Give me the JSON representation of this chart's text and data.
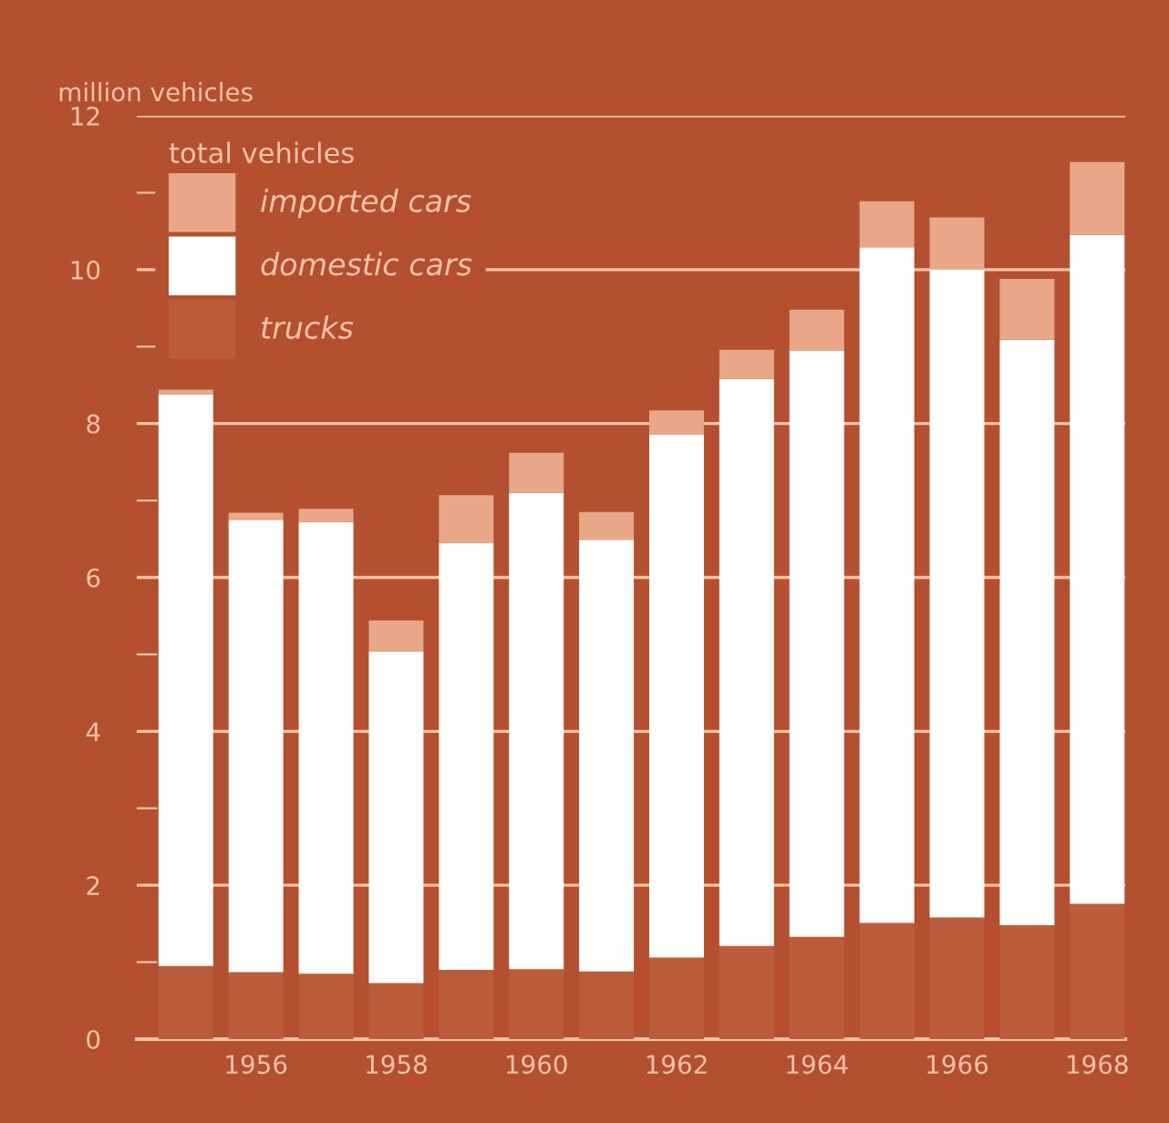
{
  "chart_data": {
    "type": "bar",
    "stacked": true,
    "ylabel": "million vehicles",
    "legend_title": "total vehicles",
    "categories": [
      null,
      "1956",
      null,
      "1958",
      null,
      "1960",
      null,
      "1962",
      null,
      "1964",
      null,
      "1966",
      null,
      "1968"
    ],
    "series": [
      {
        "name": "trucks",
        "color": "#bb5c3c",
        "values": [
          0.95,
          0.87,
          0.85,
          0.73,
          0.9,
          0.91,
          0.88,
          1.06,
          1.21,
          1.33,
          1.51,
          1.58,
          1.48,
          1.76
        ]
      },
      {
        "name": "domestic cars",
        "color": "#ffffff",
        "values": [
          7.43,
          5.88,
          5.87,
          4.31,
          5.55,
          6.19,
          5.61,
          6.8,
          7.37,
          7.62,
          8.78,
          8.42,
          7.61,
          8.69
        ]
      },
      {
        "name": "imported cars",
        "color": "#e8a888",
        "values": [
          0.06,
          0.09,
          0.17,
          0.4,
          0.62,
          0.52,
          0.36,
          0.31,
          0.38,
          0.53,
          0.6,
          0.68,
          0.79,
          0.95
        ]
      }
    ],
    "ylim": [
      0,
      12
    ],
    "yticks": [
      0,
      {
        "value": 1,
        "label": null
      },
      2,
      {
        "value": 3,
        "label": null
      },
      4,
      {
        "value": 5,
        "label": null
      },
      6,
      {
        "value": 7,
        "label": null
      },
      8,
      {
        "value": 9,
        "label": null
      },
      10,
      {
        "value": 11,
        "label": null
      },
      12
    ],
    "grid": "y",
    "legend": "top left"
  }
}
